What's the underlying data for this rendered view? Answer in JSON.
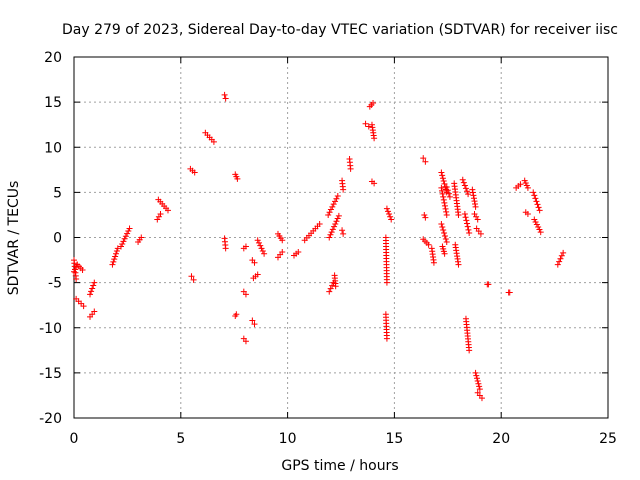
{
  "chart_data": {
    "type": "scatter",
    "title": "Day 279 of 2023, Sidereal Day-to-day VTEC variation (SDTVAR) for receiver iisc",
    "xlabel": "GPS time / hours",
    "ylabel": "SDTVAR / TECUs",
    "xlim": [
      0,
      25
    ],
    "ylim": [
      -20,
      20
    ],
    "xticks": [
      0,
      5,
      10,
      15,
      20,
      25
    ],
    "yticks": [
      -20,
      -15,
      -10,
      -5,
      0,
      5,
      10,
      15,
      20
    ],
    "xtick_labels": [
      "0",
      "5",
      "10",
      "15",
      "20",
      "25"
    ],
    "ytick_labels": [
      "-20",
      "-15",
      "-10",
      "-5",
      "0",
      "5",
      "10",
      "15",
      "20"
    ],
    "grid": true,
    "marker": "+",
    "color": "#ff0000",
    "segments": [
      {
        "x": [
          0.0,
          0.15
        ],
        "y": [
          -3.8,
          -3.0
        ]
      },
      {
        "x": [
          0.0,
          0.1
        ],
        "y": [
          -2.5,
          -4.6
        ]
      },
      {
        "x": [
          0.15,
          0.4
        ],
        "y": [
          -3.0,
          -3.6
        ]
      },
      {
        "x": [
          0.1,
          0.45
        ],
        "y": [
          -6.8,
          -7.6
        ]
      },
      {
        "x": [
          0.75,
          0.95
        ],
        "y": [
          -6.3,
          -5.0
        ]
      },
      {
        "x": [
          0.75,
          0.95
        ],
        "y": [
          -8.8,
          -8.2
        ]
      },
      {
        "x": [
          1.8,
          2.05
        ],
        "y": [
          -3.0,
          -1.2
        ]
      },
      {
        "x": [
          2.2,
          2.6
        ],
        "y": [
          -1.0,
          1.0
        ]
      },
      {
        "x": [
          3.0,
          3.15
        ],
        "y": [
          -0.5,
          0.0
        ]
      },
      {
        "x": [
          3.9,
          4.05
        ],
        "y": [
          2.0,
          2.6
        ]
      },
      {
        "x": [
          3.95,
          4.4
        ],
        "y": [
          4.2,
          3.0
        ]
      },
      {
        "x": [
          5.45,
          5.65
        ],
        "y": [
          7.6,
          7.2
        ]
      },
      {
        "x": [
          5.5,
          5.6
        ],
        "y": [
          -4.3,
          -4.7
        ]
      },
      {
        "x": [
          6.15,
          6.55
        ],
        "y": [
          11.6,
          10.6
        ]
      },
      {
        "x": [
          7.05,
          7.1
        ],
        "y": [
          15.8,
          15.4
        ]
      },
      {
        "x": [
          7.05,
          7.1
        ],
        "y": [
          -0.1,
          -1.2
        ]
      },
      {
        "x": [
          7.55,
          7.65
        ],
        "y": [
          7.0,
          6.5
        ]
      },
      {
        "x": [
          7.6,
          7.55
        ],
        "y": [
          -8.5,
          -8.7
        ]
      },
      {
        "x": [
          7.95,
          8.05
        ],
        "y": [
          -1.2,
          -1.0
        ]
      },
      {
        "x": [
          7.95,
          8.05
        ],
        "y": [
          -6.0,
          -6.3
        ]
      },
      {
        "x": [
          7.95,
          8.05
        ],
        "y": [
          -11.2,
          -11.5
        ]
      },
      {
        "x": [
          8.35,
          8.45
        ],
        "y": [
          -2.5,
          -2.8
        ]
      },
      {
        "x": [
          8.4,
          8.6
        ],
        "y": [
          -4.5,
          -4.1
        ]
      },
      {
        "x": [
          8.35,
          8.45
        ],
        "y": [
          -9.2,
          -9.6
        ]
      },
      {
        "x": [
          8.6,
          8.9
        ],
        "y": [
          -0.3,
          -1.8
        ]
      },
      {
        "x": [
          9.55,
          9.75
        ],
        "y": [
          0.4,
          -0.3
        ]
      },
      {
        "x": [
          9.55,
          9.75
        ],
        "y": [
          -2.2,
          -1.6
        ]
      },
      {
        "x": [
          10.3,
          10.5
        ],
        "y": [
          -2.0,
          -1.6
        ]
      },
      {
        "x": [
          10.8,
          11.5
        ],
        "y": [
          -0.3,
          1.5
        ]
      },
      {
        "x": [
          11.9,
          12.35
        ],
        "y": [
          2.5,
          4.6
        ]
      },
      {
        "x": [
          11.95,
          12.4
        ],
        "y": [
          0.0,
          2.4
        ]
      },
      {
        "x": [
          11.95,
          12.15
        ],
        "y": [
          -6.0,
          -5.0
        ]
      },
      {
        "x": [
          12.2,
          12.25
        ],
        "y": [
          -4.2,
          -5.4
        ]
      },
      {
        "x": [
          12.55,
          12.6
        ],
        "y": [
          6.3,
          5.3
        ]
      },
      {
        "x": [
          12.55,
          12.6
        ],
        "y": [
          0.8,
          0.4
        ]
      },
      {
        "x": [
          12.9,
          12.95
        ],
        "y": [
          8.7,
          7.6
        ]
      },
      {
        "x": [
          13.65,
          13.8
        ],
        "y": [
          12.6,
          12.3
        ]
      },
      {
        "x": [
          13.85,
          14.0
        ],
        "y": [
          14.5,
          14.9
        ]
      },
      {
        "x": [
          13.95,
          14.05
        ],
        "y": [
          12.5,
          11.0
        ]
      },
      {
        "x": [
          13.95,
          14.05
        ],
        "y": [
          6.2,
          6.0
        ]
      },
      {
        "x": [
          14.6,
          14.65
        ],
        "y": [
          0.0,
          -5.0
        ]
      },
      {
        "x": [
          14.6,
          14.65
        ],
        "y": [
          -8.5,
          -11.2
        ]
      },
      {
        "x": [
          14.65,
          14.85
        ],
        "y": [
          3.2,
          2.0
        ]
      },
      {
        "x": [
          16.35,
          16.45
        ],
        "y": [
          8.8,
          8.4
        ]
      },
      {
        "x": [
          16.4,
          16.45
        ],
        "y": [
          2.5,
          2.2
        ]
      },
      {
        "x": [
          16.35,
          16.6
        ],
        "y": [
          -0.2,
          -0.8
        ]
      },
      {
        "x": [
          16.75,
          16.85
        ],
        "y": [
          -1.2,
          -2.8
        ]
      },
      {
        "x": [
          17.2,
          17.45
        ],
        "y": [
          5.5,
          2.5
        ]
      },
      {
        "x": [
          17.2,
          17.45
        ],
        "y": [
          7.2,
          5.0
        ]
      },
      {
        "x": [
          17.2,
          17.45
        ],
        "y": [
          1.5,
          -0.5
        ]
      },
      {
        "x": [
          17.25,
          17.35
        ],
        "y": [
          -1.0,
          -1.8
        ]
      },
      {
        "x": [
          17.45,
          17.6
        ],
        "y": [
          5.6,
          4.5
        ]
      },
      {
        "x": [
          17.8,
          18.0
        ],
        "y": [
          6.0,
          2.5
        ]
      },
      {
        "x": [
          17.85,
          18.0
        ],
        "y": [
          -0.8,
          -3.0
        ]
      },
      {
        "x": [
          18.2,
          18.45
        ],
        "y": [
          6.4,
          4.8
        ]
      },
      {
        "x": [
          18.3,
          18.5
        ],
        "y": [
          2.6,
          0.5
        ]
      },
      {
        "x": [
          18.35,
          18.5
        ],
        "y": [
          -9.0,
          -12.5
        ]
      },
      {
        "x": [
          18.65,
          18.8
        ],
        "y": [
          5.3,
          3.4
        ]
      },
      {
        "x": [
          18.75,
          18.9
        ],
        "y": [
          2.6,
          2.0
        ]
      },
      {
        "x": [
          18.85,
          19.05
        ],
        "y": [
          1.0,
          0.4
        ]
      },
      {
        "x": [
          18.8,
          19.0
        ],
        "y": [
          -15.0,
          -16.8
        ]
      },
      {
        "x": [
          18.9,
          19.1
        ],
        "y": [
          -17.2,
          -17.8
        ]
      },
      {
        "x": [
          19.35,
          19.4
        ],
        "y": [
          -5.2,
          -5.2
        ]
      },
      {
        "x": [
          20.35,
          20.4
        ],
        "y": [
          -6.1,
          -6.1
        ]
      },
      {
        "x": [
          20.7,
          20.9
        ],
        "y": [
          5.5,
          5.9
        ]
      },
      {
        "x": [
          21.1,
          21.25
        ],
        "y": [
          6.3,
          5.5
        ]
      },
      {
        "x": [
          21.15,
          21.25
        ],
        "y": [
          2.8,
          2.6
        ]
      },
      {
        "x": [
          21.5,
          21.8
        ],
        "y": [
          5.0,
          3.0
        ]
      },
      {
        "x": [
          21.55,
          21.85
        ],
        "y": [
          2.0,
          0.6
        ]
      },
      {
        "x": [
          22.65,
          22.9
        ],
        "y": [
          -3.0,
          -1.7
        ]
      }
    ]
  }
}
